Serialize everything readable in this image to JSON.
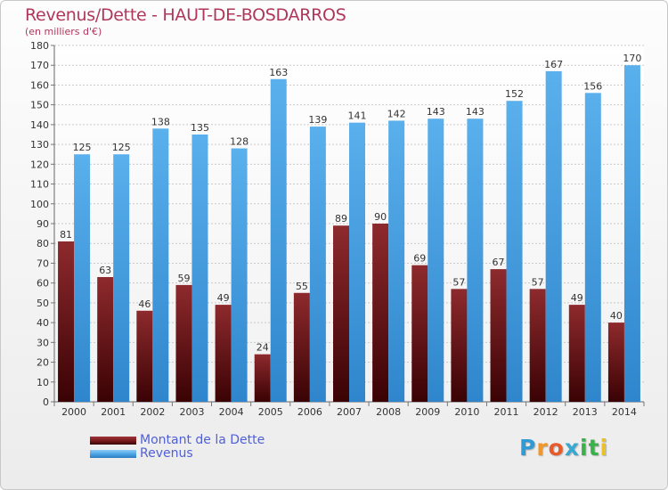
{
  "title": "Revenus/Dette - HAUT-DE-BOSDARROS",
  "subtitle": "(en milliers d'€)",
  "colors": {
    "debt": "#7a1a1c",
    "revenue": "#4da6e6",
    "title": "#b0365c",
    "legend_text": "#5060d8"
  },
  "logo": {
    "text": "Proxiti",
    "letters": [
      "P",
      "r",
      "o",
      "x",
      "i",
      "t",
      "i"
    ],
    "letter_colors": [
      "#2f9bd6",
      "#f0962b",
      "#e85a2a",
      "#3aa7d0",
      "#3cb04b",
      "#3cb04b",
      "#e8c02a"
    ]
  },
  "legend": [
    {
      "label": "Montant de la Dette",
      "color": "#7a1a1c"
    },
    {
      "label": "Revenus",
      "color": "#4da6e6"
    }
  ],
  "chart_data": {
    "type": "bar",
    "title": "Revenus/Dette - HAUT-DE-BOSDARROS",
    "subtitle": "(en milliers d'€)",
    "categories": [
      "2000",
      "2001",
      "2002",
      "2003",
      "2004",
      "2005",
      "2006",
      "2007",
      "2008",
      "2009",
      "2010",
      "2011",
      "2012",
      "2013",
      "2014"
    ],
    "series": [
      {
        "name": "Montant de la Dette",
        "values": [
          81,
          63,
          46,
          59,
          49,
          24,
          55,
          89,
          90,
          69,
          57,
          67,
          57,
          49,
          40
        ]
      },
      {
        "name": "Revenus",
        "values": [
          125,
          125,
          138,
          135,
          128,
          163,
          139,
          141,
          142,
          143,
          143,
          152,
          167,
          156,
          170
        ]
      }
    ],
    "ylim": [
      0,
      180
    ],
    "yticks": [
      0,
      10,
      20,
      30,
      40,
      50,
      60,
      70,
      80,
      90,
      100,
      110,
      120,
      130,
      140,
      150,
      160,
      170,
      180
    ],
    "grid": true,
    "legend_position": "bottom-left"
  }
}
